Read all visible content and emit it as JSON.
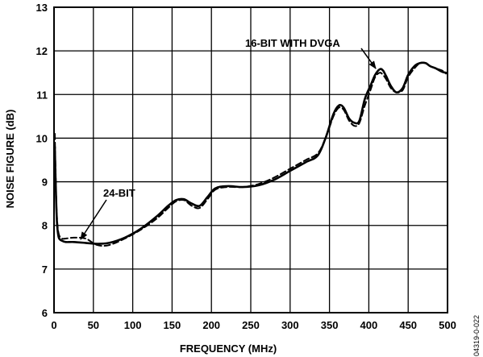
{
  "chart_data": {
    "type": "line",
    "xlabel": "FREQUENCY (MHz)",
    "ylabel": "NOISE FIGURE (dB)",
    "xlim": [
      0,
      500
    ],
    "ylim": [
      6,
      13
    ],
    "x_ticks": [
      0,
      50,
      100,
      150,
      200,
      250,
      300,
      350,
      400,
      450,
      500
    ],
    "y_ticks": [
      6,
      7,
      8,
      9,
      10,
      11,
      12,
      13
    ],
    "grid": true,
    "series": [
      {
        "name": "24-BIT",
        "style": "solid",
        "x": [
          1,
          2,
          3,
          4,
          6,
          10,
          15,
          25,
          40,
          55,
          70,
          90,
          110,
          130,
          145,
          155,
          165,
          175,
          185,
          195,
          205,
          220,
          240,
          260,
          280,
          300,
          320,
          335,
          345,
          355,
          362,
          368,
          375,
          382,
          388,
          395,
          402,
          408,
          414,
          418,
          422,
          428,
          435,
          443,
          450,
          458,
          465,
          472,
          478,
          485,
          493,
          498
        ],
        "y": [
          9.8,
          9.0,
          8.4,
          8.0,
          7.72,
          7.65,
          7.62,
          7.62,
          7.6,
          7.58,
          7.6,
          7.72,
          7.92,
          8.2,
          8.45,
          8.58,
          8.6,
          8.5,
          8.45,
          8.65,
          8.85,
          8.9,
          8.88,
          8.92,
          9.05,
          9.25,
          9.45,
          9.6,
          10.0,
          10.55,
          10.75,
          10.7,
          10.45,
          10.35,
          10.4,
          10.9,
          11.2,
          11.45,
          11.58,
          11.55,
          11.42,
          11.2,
          11.05,
          11.15,
          11.45,
          11.65,
          11.72,
          11.72,
          11.65,
          11.6,
          11.52,
          11.5
        ]
      },
      {
        "name": "16-BIT WITH DVGA",
        "style": "dashed",
        "x": [
          1,
          2,
          3,
          4,
          6,
          10,
          15,
          25,
          40,
          55,
          70,
          90,
          110,
          130,
          145,
          155,
          165,
          175,
          185,
          195,
          205,
          220,
          240,
          260,
          280,
          300,
          320,
          335,
          345,
          355,
          362,
          368,
          375,
          382,
          388,
          395,
          402,
          408,
          414,
          418,
          422,
          428,
          435,
          443,
          450,
          458,
          465,
          472,
          478,
          485,
          493,
          498
        ],
        "y": [
          10.1,
          9.2,
          8.5,
          8.1,
          7.8,
          7.7,
          7.7,
          7.72,
          7.7,
          7.55,
          7.55,
          7.7,
          7.9,
          8.15,
          8.4,
          8.55,
          8.58,
          8.45,
          8.4,
          8.6,
          8.82,
          8.88,
          8.88,
          8.95,
          9.1,
          9.3,
          9.5,
          9.65,
          10.0,
          10.5,
          10.7,
          10.65,
          10.4,
          10.28,
          10.35,
          10.75,
          11.1,
          11.4,
          11.5,
          11.45,
          11.35,
          11.15,
          11.05,
          11.1,
          11.4,
          11.6,
          11.72,
          11.72,
          11.65,
          11.6,
          11.55,
          11.48
        ]
      }
    ],
    "annotations": [
      {
        "text": "24-BIT",
        "target_series": "24-BIT"
      },
      {
        "text": "16-BIT WITH DVGA",
        "target_series": "16-BIT WITH DVGA"
      }
    ],
    "figure_code": "04319-0-022"
  }
}
